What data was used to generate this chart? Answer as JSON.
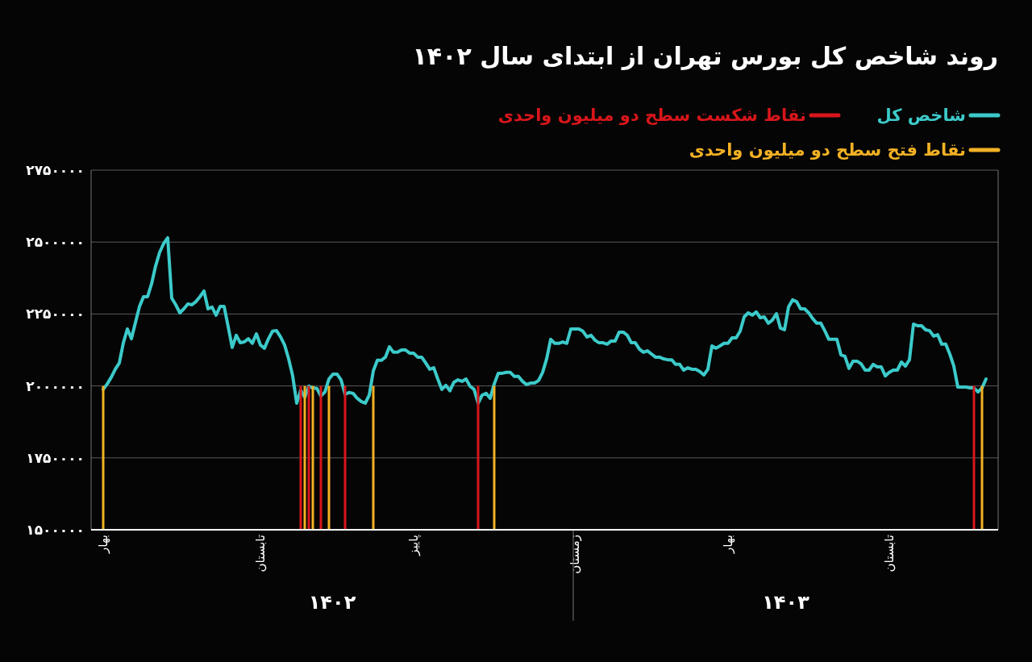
{
  "chart_data": {
    "type": "line",
    "title": "روند شاخص کل بورس تهران از ابتدای سال ۱۴۰۲",
    "categories": [
      "بهار",
      null,
      null,
      null,
      null,
      null,
      null,
      null,
      null,
      null,
      null,
      null,
      null,
      null,
      null,
      null,
      null,
      null,
      null,
      null,
      null,
      null,
      null,
      null,
      null,
      null,
      null,
      null,
      null,
      null,
      null,
      null,
      null,
      null,
      null,
      null,
      null,
      null,
      null,
      "تابستان",
      null,
      null,
      null,
      null,
      null,
      null,
      null,
      null,
      null,
      null,
      null,
      null,
      null,
      null,
      null,
      null,
      null,
      null,
      null,
      null,
      null,
      null,
      null,
      null,
      null,
      null,
      null,
      null,
      null,
      null,
      null,
      null,
      null,
      null,
      null,
      null,
      null,
      "پاییز",
      null,
      null,
      null,
      null,
      null,
      null,
      null,
      null,
      null,
      null,
      null,
      null,
      null,
      null,
      null,
      null,
      null,
      null,
      null,
      null,
      null,
      null,
      null,
      null,
      null,
      null,
      null,
      null,
      null,
      null,
      null,
      null,
      null,
      null,
      null,
      null,
      null,
      null,
      null,
      "زمستان",
      null,
      null,
      null,
      null,
      null,
      null,
      null,
      null,
      null,
      null,
      null,
      null,
      null,
      null,
      null,
      null,
      null,
      null,
      null,
      null,
      null,
      null,
      null,
      null,
      null,
      null,
      null,
      null,
      null,
      null,
      null,
      null,
      null,
      null,
      null,
      null,
      null,
      "بهار",
      null,
      null,
      null,
      null,
      null,
      null,
      null,
      null,
      null,
      null,
      null,
      null,
      null,
      null,
      null,
      null,
      null,
      null,
      null,
      null,
      null,
      null,
      null,
      null,
      null,
      null,
      null,
      null,
      null,
      null,
      null,
      null,
      null,
      null,
      null,
      null,
      null,
      null,
      null,
      "تابستان",
      null,
      null,
      null,
      null,
      null,
      null,
      null,
      null,
      null,
      null,
      null,
      null,
      null,
      null,
      null,
      null,
      null,
      null,
      null,
      null,
      null,
      null,
      null,
      null
    ],
    "ylim": [
      1500000,
      2750000
    ],
    "yticks": [
      {
        "value": 1500000,
        "label": "۱۵۰۰۰۰۰"
      },
      {
        "value": 1750000,
        "label": "۱۷۵۰۰۰۰"
      },
      {
        "value": 2000000,
        "label": "۲۰۰۰۰۰۰"
      },
      {
        "value": 2250000,
        "label": "۲۲۵۰۰۰۰"
      },
      {
        "value": 2500000,
        "label": "۲۵۰۰۰۰۰"
      },
      {
        "value": 2750000,
        "label": "۲۷۵۰۰۰۰"
      }
    ],
    "grid": "y",
    "legend": "top right",
    "annotations": [
      "۱۴۰۲",
      "۱۴۰۳"
    ],
    "series": [
      {
        "name": "شاخص کل",
        "color": "#3ccaca",
        "values": [
          1988000,
          2007000,
          2030000,
          2058000,
          2080000,
          2150000,
          2198000,
          2164000,
          2220000,
          2276000,
          2310000,
          2310000,
          2355000,
          2417000,
          2464000,
          2495000,
          2515000,
          2305000,
          2282000,
          2254000,
          2268000,
          2285000,
          2282000,
          2293000,
          2310000,
          2330000,
          2268000,
          2274000,
          2246000,
          2276000,
          2276000,
          2206000,
          2134000,
          2176000,
          2150000,
          2153000,
          2164000,
          2148000,
          2181000,
          2142000,
          2131000,
          2164000,
          2190000,
          2192000,
          2170000,
          2142000,
          2094000,
          2035000,
          1940000,
          1985000,
          1960000,
          1999000,
          1993000,
          1991000,
          1965000,
          1979000,
          2024000,
          2041000,
          2041000,
          2021000,
          1971000,
          1977000,
          1974000,
          1957000,
          1946000,
          1940000,
          1968000,
          2052000,
          2089000,
          2089000,
          2100000,
          2136000,
          2117000,
          2117000,
          2125000,
          2125000,
          2114000,
          2114000,
          2100000,
          2100000,
          2080000,
          2058000,
          2063000,
          2024000,
          1988000,
          2002000,
          1983000,
          2013000,
          2021000,
          2016000,
          2024000,
          1999000,
          1988000,
          1940000,
          1968000,
          1974000,
          1957000,
          2007000,
          2044000,
          2044000,
          2047000,
          2047000,
          2033000,
          2033000,
          2016000,
          2005000,
          2010000,
          2010000,
          2019000,
          2047000,
          2094000,
          2162000,
          2148000,
          2148000,
          2153000,
          2148000,
          2198000,
          2198000,
          2198000,
          2190000,
          2170000,
          2176000,
          2159000,
          2150000,
          2150000,
          2145000,
          2156000,
          2156000,
          2187000,
          2187000,
          2176000,
          2150000,
          2150000,
          2128000,
          2117000,
          2122000,
          2111000,
          2100000,
          2100000,
          2094000,
          2091000,
          2091000,
          2075000,
          2075000,
          2055000,
          2063000,
          2058000,
          2058000,
          2050000,
          2038000,
          2058000,
          2139000,
          2131000,
          2139000,
          2148000,
          2148000,
          2167000,
          2167000,
          2190000,
          2240000,
          2254000,
          2246000,
          2257000,
          2237000,
          2240000,
          2218000,
          2229000,
          2251000,
          2201000,
          2195000,
          2274000,
          2299000,
          2293000,
          2268000,
          2268000,
          2254000,
          2234000,
          2218000,
          2218000,
          2192000,
          2162000,
          2162000,
          2162000,
          2108000,
          2103000,
          2061000,
          2086000,
          2086000,
          2077000,
          2055000,
          2055000,
          2075000,
          2066000,
          2066000,
          2035000,
          2047000,
          2055000,
          2055000,
          2083000,
          2069000,
          2091000,
          2215000,
          2209000,
          2209000,
          2195000,
          2192000,
          2173000,
          2178000,
          2145000,
          2145000,
          2111000,
          2069000,
          1996000,
          1996000,
          1996000,
          1993000,
          1993000,
          1979000,
          1993000,
          2024000
        ]
      },
      {
        "name": "نقاط شکست سطح دو میلیون واحدی",
        "type": "bar",
        "color": "#d8161b",
        "values": [
          null,
          null,
          null,
          null,
          null,
          null,
          null,
          null,
          null,
          null,
          null,
          null,
          null,
          null,
          null,
          null,
          null,
          null,
          null,
          null,
          null,
          null,
          null,
          null,
          null,
          null,
          null,
          null,
          null,
          null,
          null,
          null,
          null,
          null,
          null,
          null,
          null,
          null,
          null,
          null,
          null,
          null,
          null,
          null,
          null,
          null,
          null,
          null,
          null,
          2000000,
          null,
          2000000,
          null,
          null,
          2000000,
          null,
          null,
          null,
          null,
          null,
          2000000,
          null,
          null,
          null,
          null,
          null,
          null,
          null,
          null,
          null,
          null,
          null,
          null,
          null,
          null,
          null,
          null,
          null,
          null,
          null,
          null,
          null,
          null,
          null,
          null,
          null,
          null,
          null,
          null,
          null,
          null,
          null,
          null,
          2000000,
          null,
          null,
          null,
          null,
          null,
          null,
          null,
          null,
          null,
          null,
          null,
          null,
          null,
          null,
          null,
          null,
          null,
          null,
          null,
          null,
          null,
          null,
          null,
          null,
          null,
          null,
          null,
          null,
          null,
          null,
          null,
          null,
          null,
          null,
          null,
          null,
          null,
          null,
          null,
          null,
          null,
          null,
          null,
          null,
          null,
          null,
          null,
          null,
          null,
          null,
          null,
          null,
          null,
          null,
          null,
          null,
          null,
          null,
          null,
          null,
          null,
          null,
          null,
          null,
          null,
          null,
          null,
          null,
          null,
          null,
          null,
          null,
          null,
          null,
          null,
          null,
          null,
          null,
          null,
          null,
          null,
          null,
          null,
          null,
          null,
          null,
          null,
          null,
          null,
          null,
          null,
          null,
          null,
          null,
          null,
          null,
          null,
          null,
          null,
          null,
          null,
          null,
          null,
          null,
          null,
          null,
          null,
          null,
          null,
          null,
          null,
          null,
          null,
          null,
          null,
          null,
          null,
          null,
          null,
          null,
          null,
          null,
          2000000,
          null,
          null,
          null
        ]
      },
      {
        "name": "نقاط فتح سطح دو میلیون واحدی",
        "type": "bar",
        "color": "#f2b124",
        "values": [
          2000000,
          null,
          null,
          null,
          null,
          null,
          null,
          null,
          null,
          null,
          null,
          null,
          null,
          null,
          null,
          null,
          null,
          null,
          null,
          null,
          null,
          null,
          null,
          null,
          null,
          null,
          null,
          null,
          null,
          null,
          null,
          null,
          null,
          null,
          null,
          null,
          null,
          null,
          null,
          null,
          null,
          null,
          null,
          null,
          null,
          null,
          null,
          null,
          null,
          null,
          2000000,
          null,
          2000000,
          null,
          null,
          null,
          2000000,
          null,
          null,
          null,
          null,
          null,
          null,
          null,
          null,
          null,
          null,
          2000000,
          null,
          null,
          null,
          null,
          null,
          null,
          null,
          null,
          null,
          null,
          null,
          null,
          null,
          null,
          null,
          null,
          null,
          null,
          null,
          null,
          null,
          null,
          null,
          null,
          null,
          null,
          null,
          null,
          null,
          2000000,
          null,
          null,
          null,
          null,
          null,
          null,
          null,
          null,
          null,
          null,
          null,
          null,
          null,
          null,
          null,
          null,
          null,
          null,
          null,
          null,
          null,
          null,
          null,
          null,
          null,
          null,
          null,
          null,
          null,
          null,
          null,
          null,
          null,
          null,
          null,
          null,
          null,
          null,
          null,
          null,
          null,
          null,
          null,
          null,
          null,
          null,
          null,
          null,
          null,
          null,
          null,
          null,
          null,
          null,
          null,
          null,
          null,
          null,
          null,
          null,
          null,
          null,
          null,
          null,
          null,
          null,
          null,
          null,
          null,
          null,
          null,
          null,
          null,
          null,
          null,
          null,
          null,
          null,
          null,
          null,
          null,
          null,
          null,
          null,
          null,
          null,
          null,
          null,
          null,
          null,
          null,
          null,
          null,
          null,
          null,
          null,
          null,
          null,
          null,
          null,
          null,
          null,
          null,
          null,
          null,
          null,
          null,
          null,
          null,
          null,
          null,
          null,
          null,
          null,
          null,
          null,
          null,
          null,
          null,
          null,
          2000000,
          null
        ]
      }
    ]
  }
}
